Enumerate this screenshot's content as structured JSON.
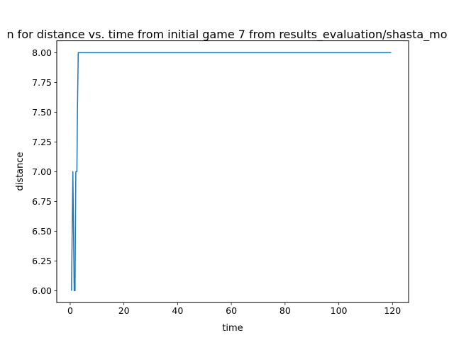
{
  "chart_data": {
    "type": "line",
    "title": "n for distance vs. time from initial game 7 from results_evaluation/shasta_mo",
    "xlabel": "time",
    "ylabel": "distance",
    "xlim": [
      -5,
      126
    ],
    "ylim": [
      5.9,
      8.1
    ],
    "xticks": [
      0,
      20,
      40,
      60,
      80,
      100,
      120
    ],
    "yticks": [
      6.0,
      6.25,
      6.5,
      6.75,
      7.0,
      7.25,
      7.5,
      7.75,
      8.0
    ],
    "xtick_labels": [
      "0",
      "20",
      "40",
      "60",
      "80",
      "100",
      "120"
    ],
    "ytick_labels": [
      "6.00",
      "6.25",
      "6.50",
      "6.75",
      "7.00",
      "7.25",
      "7.50",
      "7.75",
      "8.00"
    ],
    "grid": false,
    "line_color": "#1f77b4",
    "series": [
      {
        "x": [
          0.5,
          1.0,
          1.5,
          1.8,
          2.1,
          2.5,
          2.7,
          3.0,
          119.5
        ],
        "y": [
          6.0,
          7.0,
          6.0,
          6.0,
          7.0,
          7.0,
          7.5,
          8.0,
          8.0
        ]
      }
    ]
  }
}
